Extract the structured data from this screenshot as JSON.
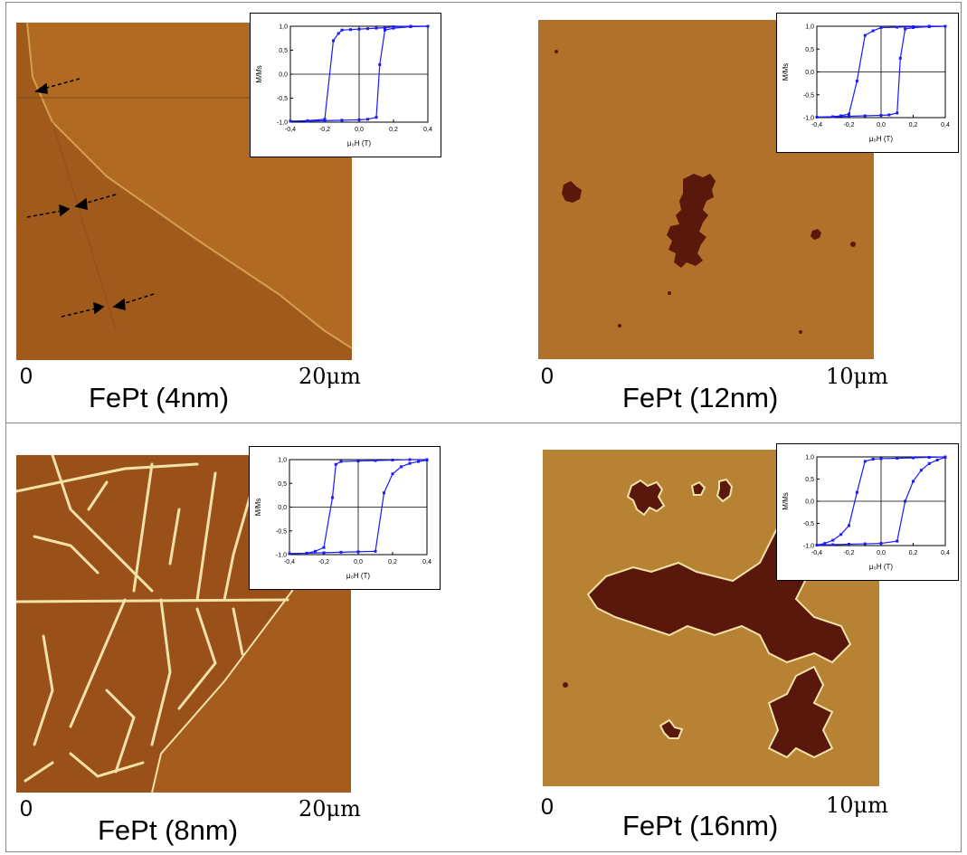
{
  "panels": [
    {
      "id": "p1",
      "title": "FePt (4nm)",
      "scale_start": "0",
      "scale_end": "20μm"
    },
    {
      "id": "p2",
      "title": "FePt (12nm)",
      "scale_start": "0",
      "scale_end": "10μm"
    },
    {
      "id": "p3",
      "title": "FePt (8nm)",
      "scale_start": "0",
      "scale_end": "20μm"
    },
    {
      "id": "p4",
      "title": "FePt (16nm)",
      "scale_start": "0",
      "scale_end": "10μm"
    }
  ],
  "colors": {
    "afm_background": "#a9611f",
    "afm_background_light": "#b5782c",
    "domain_dark": "#5a180c",
    "domain_light": "#f3e2a8",
    "loop_color": "#1a1aff"
  },
  "chart_data": [
    {
      "type": "line",
      "panel": "FePt (4nm)",
      "xlabel": "μ₀H (T)",
      "ylabel": "M/Ms",
      "xlim": [
        -0.4,
        0.4
      ],
      "ylim": [
        -1.0,
        1.0
      ],
      "xticks": [
        "-0,4",
        "-0,2",
        "0,0",
        "0,2",
        "0,4"
      ],
      "yticks": [
        "1,0",
        "0,5",
        "0,0",
        "-0,5",
        "-1,0"
      ],
      "series": [
        {
          "x": [
            0.4,
            0.3,
            0.2,
            0.15,
            0.1,
            0.05,
            0.0,
            -0.05,
            -0.1,
            -0.12,
            -0.15,
            -0.2,
            -0.3,
            -0.4
          ],
          "y": [
            1.0,
            1.0,
            0.99,
            0.97,
            0.96,
            0.95,
            0.94,
            0.93,
            0.92,
            0.85,
            0.7,
            -0.94,
            -0.97,
            -0.98
          ]
        },
        {
          "x": [
            -0.4,
            -0.3,
            -0.2,
            -0.1,
            0.0,
            0.05,
            0.1,
            0.12,
            0.15,
            0.2,
            0.3,
            0.4
          ],
          "y": [
            -0.98,
            -0.98,
            -0.97,
            -0.96,
            -0.95,
            -0.94,
            -0.9,
            0.2,
            0.92,
            0.96,
            0.99,
            1.0
          ]
        }
      ]
    },
    {
      "type": "line",
      "panel": "FePt (12nm)",
      "xlabel": "μ₀H (T)",
      "ylabel": "M/Ms",
      "xlim": [
        -0.4,
        0.4
      ],
      "ylim": [
        -1.0,
        1.0
      ],
      "xticks": [
        "-0,4",
        "-0,2",
        "0,0",
        "0,2",
        "0,4"
      ],
      "yticks": [
        "1,0",
        "0,5",
        "0,0",
        "-0,5",
        "-1,0"
      ],
      "series": [
        {
          "x": [
            0.4,
            0.3,
            0.2,
            0.1,
            0.0,
            -0.05,
            -0.1,
            -0.15,
            -0.2,
            -0.25,
            -0.3,
            -0.4
          ],
          "y": [
            1.0,
            1.0,
            0.99,
            0.98,
            0.97,
            0.9,
            0.8,
            -0.2,
            -0.92,
            -0.96,
            -0.98,
            -0.99
          ]
        },
        {
          "x": [
            -0.4,
            -0.3,
            -0.2,
            -0.1,
            0.0,
            0.05,
            0.1,
            0.12,
            0.15,
            0.2,
            0.3,
            0.4
          ],
          "y": [
            -0.99,
            -0.98,
            -0.97,
            -0.96,
            -0.95,
            -0.94,
            -0.9,
            0.3,
            0.94,
            0.97,
            0.99,
            1.0
          ]
        }
      ]
    },
    {
      "type": "line",
      "panel": "FePt (8nm)",
      "xlabel": "μ₀H (T)",
      "ylabel": "M/Ms",
      "xlim": [
        -0.4,
        0.4
      ],
      "ylim": [
        -1.0,
        1.0
      ],
      "xticks": [
        "-0,4",
        "-0,2",
        "0,0",
        "0,2",
        "0,4"
      ],
      "yticks": [
        "1,0",
        "0,5",
        "0,0",
        "-0,5",
        "-1,0"
      ],
      "series": [
        {
          "x": [
            0.4,
            0.3,
            0.2,
            0.1,
            0.0,
            -0.1,
            -0.13,
            -0.15,
            -0.2,
            -0.25,
            -0.3,
            -0.4
          ],
          "y": [
            1.0,
            1.0,
            0.99,
            0.98,
            0.97,
            0.96,
            0.9,
            0.2,
            -0.85,
            -0.93,
            -0.97,
            -0.98
          ]
        },
        {
          "x": [
            -0.4,
            -0.3,
            -0.2,
            -0.1,
            0.0,
            0.1,
            0.15,
            0.2,
            0.25,
            0.3,
            0.35,
            0.4
          ],
          "y": [
            -0.98,
            -0.97,
            -0.96,
            -0.95,
            -0.94,
            -0.93,
            0.3,
            0.7,
            0.85,
            0.92,
            0.96,
            0.99
          ]
        }
      ]
    },
    {
      "type": "line",
      "panel": "FePt (16nm)",
      "xlabel": "μ₀H (T)",
      "ylabel": "M/Ms",
      "xlim": [
        -0.4,
        0.4
      ],
      "ylim": [
        -1.0,
        1.0
      ],
      "xticks": [
        "-0,4",
        "-0,2",
        "0,0",
        "0,2",
        "0,4"
      ],
      "yticks": [
        "1,0",
        "0,5",
        "0,0",
        "-0,5",
        "-1,0"
      ],
      "series": [
        {
          "x": [
            0.4,
            0.3,
            0.2,
            0.1,
            0.0,
            -0.05,
            -0.1,
            -0.15,
            -0.2,
            -0.25,
            -0.3,
            -0.35,
            -0.4
          ],
          "y": [
            1.0,
            0.99,
            0.98,
            0.97,
            0.96,
            0.95,
            0.9,
            0.2,
            -0.55,
            -0.75,
            -0.88,
            -0.95,
            -0.99
          ]
        },
        {
          "x": [
            -0.4,
            -0.3,
            -0.2,
            -0.1,
            0.0,
            0.1,
            0.15,
            0.2,
            0.25,
            0.3,
            0.35,
            0.4
          ],
          "y": [
            -0.99,
            -0.98,
            -0.97,
            -0.96,
            -0.95,
            -0.9,
            0.0,
            0.45,
            0.7,
            0.85,
            0.93,
            0.99
          ]
        }
      ]
    }
  ]
}
